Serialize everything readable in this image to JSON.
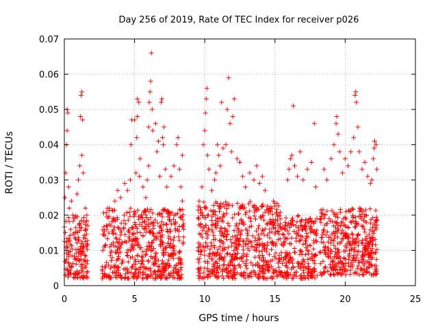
{
  "chart_data": {
    "type": "scatter",
    "title": "Day 256 of 2019, Rate Of TEC Index for receiver p026",
    "xlabel": "GPS time / hours",
    "ylabel": "ROTI / TECUs",
    "xlim": [
      0,
      25
    ],
    "ylim": [
      0,
      0.07
    ],
    "grid": true,
    "marker": "+",
    "color": "#ff0000",
    "x_ticks": [
      0,
      5,
      10,
      15,
      20,
      25
    ],
    "x_tick_labels": [
      "0",
      "5",
      "10",
      "15",
      "20",
      "25"
    ],
    "y_ticks": [
      0,
      0.01,
      0.02,
      0.03,
      0.04,
      0.05,
      0.06,
      0.07
    ],
    "y_tick_labels": [
      "0",
      "0.01",
      "0.02",
      "0.03",
      "0.04",
      "0.05",
      "0.06",
      "0.07"
    ],
    "series": [
      {
        "name": "ROTI",
        "dense_segments": [
          {
            "x_start": 0.0,
            "x_end": 1.7,
            "y_min": 0.002,
            "y_max": 0.02,
            "n": 160
          },
          {
            "x_start": 2.7,
            "x_end": 8.5,
            "y_min": 0.002,
            "y_max": 0.022,
            "n": 560
          },
          {
            "x_start": 9.5,
            "x_end": 15.5,
            "y_min": 0.002,
            "y_max": 0.024,
            "n": 600
          },
          {
            "x_start": 15.5,
            "x_end": 18.0,
            "y_min": 0.002,
            "y_max": 0.02,
            "n": 240
          },
          {
            "x_start": 18.2,
            "x_end": 22.3,
            "y_min": 0.003,
            "y_max": 0.022,
            "n": 420
          }
        ],
        "points": [
          [
            0.05,
            0.025
          ],
          [
            0.1,
            0.032
          ],
          [
            0.15,
            0.04
          ],
          [
            0.2,
            0.044
          ],
          [
            0.2,
            0.05
          ],
          [
            0.25,
            0.049
          ],
          [
            0.3,
            0.028
          ],
          [
            0.35,
            0.022
          ],
          [
            0.5,
            0.024
          ],
          [
            0.6,
            0.02
          ],
          [
            0.9,
            0.026
          ],
          [
            1.0,
            0.03
          ],
          [
            1.1,
            0.034
          ],
          [
            1.15,
            0.048
          ],
          [
            1.2,
            0.054
          ],
          [
            1.25,
            0.055
          ],
          [
            1.25,
            0.037
          ],
          [
            1.3,
            0.047
          ],
          [
            1.35,
            0.032
          ],
          [
            1.5,
            0.022
          ],
          [
            1.6,
            0.02
          ],
          [
            3.2,
            0.022
          ],
          [
            3.6,
            0.024
          ],
          [
            3.8,
            0.027
          ],
          [
            4.0,
            0.025
          ],
          [
            4.3,
            0.029
          ],
          [
            4.5,
            0.027
          ],
          [
            4.7,
            0.03
          ],
          [
            4.75,
            0.04
          ],
          [
            4.8,
            0.047
          ],
          [
            5.0,
            0.047
          ],
          [
            5.1,
            0.032
          ],
          [
            5.15,
            0.042
          ],
          [
            5.2,
            0.048
          ],
          [
            5.2,
            0.053
          ],
          [
            5.3,
            0.052
          ],
          [
            5.35,
            0.031
          ],
          [
            5.4,
            0.036
          ],
          [
            5.6,
            0.028
          ],
          [
            5.8,
            0.025
          ],
          [
            5.9,
            0.03
          ],
          [
            6.0,
            0.034
          ],
          [
            6.0,
            0.045
          ],
          [
            6.05,
            0.052
          ],
          [
            6.1,
            0.055
          ],
          [
            6.15,
            0.058
          ],
          [
            6.2,
            0.066
          ],
          [
            6.25,
            0.05
          ],
          [
            6.3,
            0.044
          ],
          [
            6.5,
            0.046
          ],
          [
            6.6,
            0.038
          ],
          [
            6.7,
            0.041
          ],
          [
            6.8,
            0.031
          ],
          [
            6.9,
            0.052
          ],
          [
            6.95,
            0.053
          ],
          [
            7.0,
            0.042
          ],
          [
            7.05,
            0.04
          ],
          [
            7.1,
            0.045
          ],
          [
            7.2,
            0.033
          ],
          [
            7.3,
            0.028
          ],
          [
            7.6,
            0.031
          ],
          [
            7.8,
            0.034
          ],
          [
            8.0,
            0.04
          ],
          [
            8.1,
            0.042
          ],
          [
            8.2,
            0.033
          ],
          [
            8.3,
            0.028
          ],
          [
            8.4,
            0.037
          ],
          [
            8.4,
            0.024
          ],
          [
            9.6,
            0.024
          ],
          [
            9.8,
            0.028
          ],
          [
            9.9,
            0.04
          ],
          [
            10.0,
            0.044
          ],
          [
            10.05,
            0.049
          ],
          [
            10.1,
            0.053
          ],
          [
            10.15,
            0.056
          ],
          [
            10.2,
            0.037
          ],
          [
            10.3,
            0.033
          ],
          [
            10.5,
            0.027
          ],
          [
            10.7,
            0.03
          ],
          [
            10.8,
            0.032
          ],
          [
            10.9,
            0.04
          ],
          [
            11.0,
            0.037
          ],
          [
            11.1,
            0.034
          ],
          [
            11.2,
            0.052
          ],
          [
            11.3,
            0.039
          ],
          [
            11.5,
            0.04
          ],
          [
            11.6,
            0.05
          ],
          [
            11.7,
            0.059
          ],
          [
            11.8,
            0.046
          ],
          [
            11.9,
            0.038
          ],
          [
            12.0,
            0.048
          ],
          [
            12.1,
            0.053
          ],
          [
            12.3,
            0.036
          ],
          [
            12.5,
            0.035
          ],
          [
            12.7,
            0.031
          ],
          [
            12.9,
            0.028
          ],
          [
            13.2,
            0.032
          ],
          [
            13.5,
            0.03
          ],
          [
            13.7,
            0.034
          ],
          [
            13.9,
            0.029
          ],
          [
            14.1,
            0.031
          ],
          [
            14.3,
            0.027
          ],
          [
            14.6,
            0.022
          ],
          [
            14.9,
            0.024
          ],
          [
            15.3,
            0.02
          ],
          [
            15.9,
            0.03
          ],
          [
            16.0,
            0.033
          ],
          [
            16.1,
            0.036
          ],
          [
            16.2,
            0.037
          ],
          [
            16.3,
            0.051
          ],
          [
            16.4,
            0.034
          ],
          [
            16.6,
            0.031
          ],
          [
            16.8,
            0.038
          ],
          [
            17.0,
            0.03
          ],
          [
            17.3,
            0.033
          ],
          [
            17.6,
            0.035
          ],
          [
            17.8,
            0.046
          ],
          [
            17.9,
            0.028
          ],
          [
            18.5,
            0.033
          ],
          [
            18.7,
            0.03
          ],
          [
            19.0,
            0.036
          ],
          [
            19.2,
            0.04
          ],
          [
            19.35,
            0.046
          ],
          [
            19.4,
            0.048
          ],
          [
            19.5,
            0.043
          ],
          [
            19.6,
            0.038
          ],
          [
            19.8,
            0.032
          ],
          [
            20.0,
            0.036
          ],
          [
            20.2,
            0.034
          ],
          [
            20.4,
            0.038
          ],
          [
            20.6,
            0.042
          ],
          [
            20.7,
            0.054
          ],
          [
            20.75,
            0.055
          ],
          [
            20.8,
            0.052
          ],
          [
            20.9,
            0.045
          ],
          [
            21.0,
            0.038
          ],
          [
            21.2,
            0.033
          ],
          [
            21.4,
            0.035
          ],
          [
            21.6,
            0.031
          ],
          [
            21.8,
            0.029
          ],
          [
            21.9,
            0.03
          ],
          [
            22.0,
            0.036
          ],
          [
            22.05,
            0.039
          ],
          [
            22.1,
            0.041
          ],
          [
            22.2,
            0.04
          ],
          [
            22.25,
            0.033
          ]
        ]
      }
    ]
  }
}
